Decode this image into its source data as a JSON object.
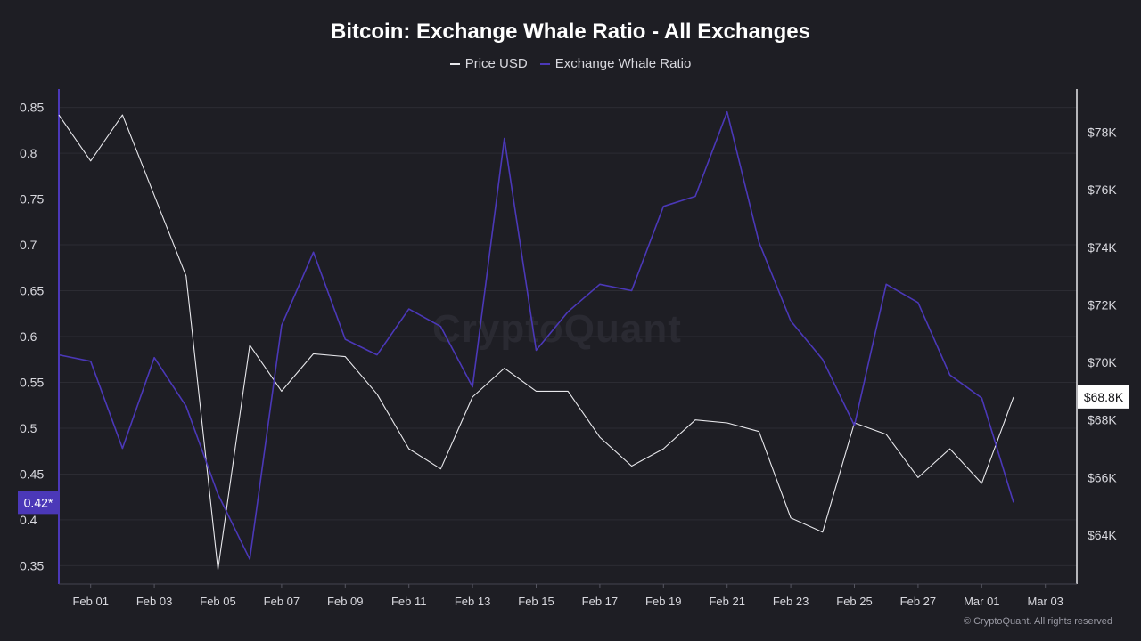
{
  "chart_data": {
    "type": "line",
    "title": "Bitcoin: Exchange Whale Ratio - All Exchanges",
    "x": [
      "Jan 31",
      "Feb 01",
      "Feb 02",
      "Feb 03",
      "Feb 04",
      "Feb 05",
      "Feb 06",
      "Feb 07",
      "Feb 08",
      "Feb 09",
      "Feb 10",
      "Feb 11",
      "Feb 12",
      "Feb 13",
      "Feb 14",
      "Feb 15",
      "Feb 16",
      "Feb 17",
      "Feb 18",
      "Feb 19",
      "Feb 20",
      "Feb 21",
      "Feb 22",
      "Feb 23",
      "Feb 24",
      "Feb 25",
      "Feb 26",
      "Feb 27",
      "Feb 28",
      "Mar 01",
      "Mar 02"
    ],
    "x_tick_labels": [
      "Feb 01",
      "Feb 03",
      "Feb 05",
      "Feb 07",
      "Feb 09",
      "Feb 11",
      "Feb 13",
      "Feb 15",
      "Feb 17",
      "Feb 19",
      "Feb 21",
      "Feb 23",
      "Feb 25",
      "Feb 27",
      "Mar 01",
      "Mar 03"
    ],
    "series": [
      {
        "name": "Price USD",
        "axis": "right",
        "color": "#e8e8ec",
        "values": [
          78600,
          77000,
          78600,
          75800,
          73000,
          62800,
          70600,
          69000,
          70300,
          70200,
          68900,
          67000,
          66300,
          68800,
          69800,
          69000,
          69000,
          67400,
          66400,
          67000,
          68000,
          67900,
          67600,
          64600,
          64100,
          67900,
          67500,
          66000,
          67000,
          65800,
          68800
        ]
      },
      {
        "name": "Exchange Whale Ratio",
        "axis": "left",
        "color": "#4b38b8",
        "values": [
          0.58,
          0.573,
          0.478,
          0.577,
          0.524,
          0.428,
          0.357,
          0.612,
          0.692,
          0.597,
          0.58,
          0.63,
          0.611,
          0.545,
          0.816,
          0.585,
          0.627,
          0.657,
          0.65,
          0.742,
          0.753,
          0.845,
          0.703,
          0.617,
          0.575,
          0.503,
          0.657,
          0.637,
          0.558,
          0.533,
          0.419
        ]
      }
    ],
    "left_axis": {
      "ylim": [
        0.33,
        0.87
      ],
      "ticks": [
        "0.35",
        "0.4",
        "0.45",
        "0.5",
        "0.55",
        "0.6",
        "0.65",
        "0.7",
        "0.75",
        "0.8",
        "0.85"
      ],
      "current_badge": "0.42*",
      "badge_value": 0.419
    },
    "right_axis": {
      "ylim": [
        62300,
        79500
      ],
      "ticks": [
        "$64K",
        "$66K",
        "$68K",
        "$70K",
        "$72K",
        "$74K",
        "$76K",
        "$78K"
      ],
      "tick_values": [
        64000,
        66000,
        68000,
        70000,
        72000,
        74000,
        76000,
        78000
      ],
      "current_badge": "$68.8K",
      "badge_value": 68800
    },
    "legend_position": "top-center",
    "grid": true
  },
  "colors": {
    "background": "#1e1e24",
    "grid": "#2c2c33",
    "price_line": "#e8e8ec",
    "whale_line": "#4b38b8",
    "left_badge": "#4b38b8"
  },
  "footer": {
    "copyright": "© CryptoQuant. All rights reserved"
  },
  "watermark": "CryptoQuant"
}
